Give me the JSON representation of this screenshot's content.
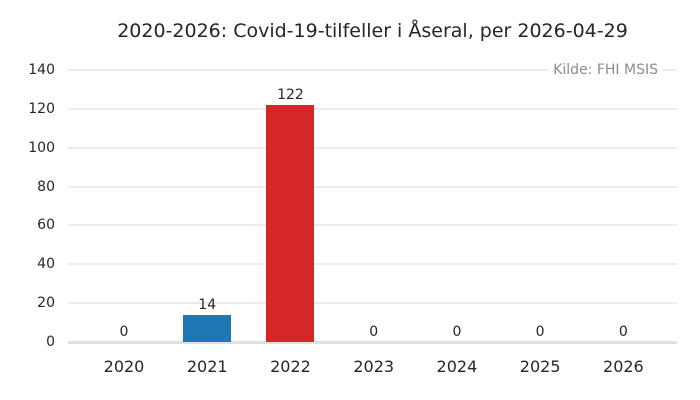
{
  "chart_data": {
    "type": "bar",
    "title": "2020-2026: Covid-19-tilfeller i Åseral, per 2026-04-29",
    "source_note": "Kilde: FHI MSIS",
    "xlabel": "",
    "ylabel": "",
    "categories": [
      "2020",
      "2021",
      "2022",
      "2023",
      "2024",
      "2025",
      "2026"
    ],
    "values": [
      0,
      14,
      122,
      0,
      0,
      0,
      0
    ],
    "value_labels": [
      "0",
      "14",
      "122",
      "0",
      "0",
      "0",
      "0"
    ],
    "bar_colors": [
      "#1f77b4",
      "#1f77b4",
      "#d62728",
      "#1f77b4",
      "#1f77b4",
      "#1f77b4",
      "#1f77b4"
    ],
    "ylim": [
      0,
      140
    ],
    "yticks": [
      0,
      20,
      40,
      60,
      80,
      100,
      120,
      140
    ],
    "grid": true,
    "legend": false,
    "colors": {
      "default_bar": "#1f77b4",
      "highlight_bar": "#d62728",
      "grid_line": "#ececec",
      "axis_line": "#e0e0e0",
      "text": "#262626",
      "source_text": "#8c8c8c",
      "background": "#ffffff"
    }
  }
}
